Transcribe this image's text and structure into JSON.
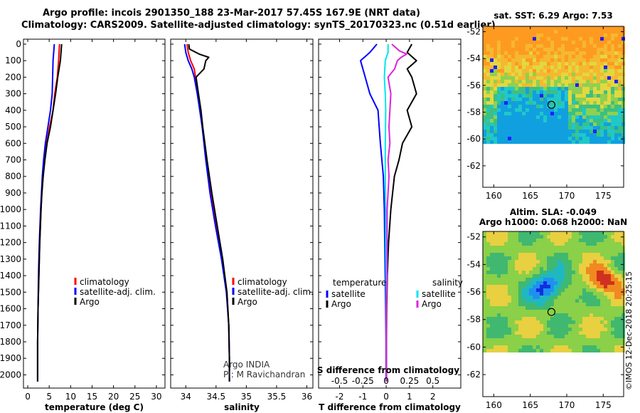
{
  "title_line1": "Argo profile: incois 2901350_188 23-Mar-2017 57.45S 167.9E (NRT data)",
  "title_line2": "Climatology: CARS2009. Satellite-adjusted climatology: synTS_20170323.nc (0.51d earlier)",
  "sst_title": "sat. SST: 6.29 Argo: 7.53",
  "sla_title1": "Altim. SLA: -0.049",
  "sla_title2": "Argo h1000: 0.068 h2000: NaN",
  "credit": "©IMOS 12-Dec-2018 20:25:15",
  "colors": {
    "climatology": "#ff0000",
    "satellite": "#0000ff",
    "argo": "#000000",
    "sat_salinity": "#00e5ee",
    "argo_salinity": "#e020e0"
  },
  "depth_ticks": [
    "0",
    "100",
    "200",
    "300",
    "400",
    "500",
    "600",
    "700",
    "800",
    "900",
    "1000",
    "1100",
    "1200",
    "1300",
    "1400",
    "1500",
    "1600",
    "1700",
    "1800",
    "1900",
    "2000"
  ],
  "chart_data": [
    {
      "type": "line",
      "xlabel": "temperature (deg C)",
      "xlim": [
        -1,
        32
      ],
      "ylim": [
        2080,
        -30
      ],
      "xticks": [
        "0",
        "5",
        "10",
        "15",
        "20",
        "25",
        "30"
      ],
      "legend": [
        "climatology",
        "satellite-adj. clim.",
        "Argo"
      ],
      "series": [
        {
          "name": "climatology",
          "depth": [
            0,
            100,
            200,
            300,
            400,
            500,
            600,
            700,
            800,
            900,
            1000,
            1200,
            1400,
            1600,
            1800,
            2000,
            2040
          ],
          "values": [
            7.4,
            7.2,
            6.9,
            6.3,
            5.9,
            5.1,
            4.4,
            3.9,
            3.6,
            3.3,
            3.1,
            2.8,
            2.6,
            2.4,
            2.3,
            2.3,
            2.3
          ]
        },
        {
          "name": "satellite-adj. clim.",
          "depth": [
            0,
            100,
            200,
            300,
            400,
            500,
            600,
            700,
            800,
            900,
            1000,
            1200,
            1400,
            1600,
            1800,
            2000,
            2040
          ],
          "values": [
            6.2,
            5.9,
            5.8,
            5.7,
            5.3,
            4.7,
            4.1,
            3.7,
            3.4,
            3.2,
            3.0,
            2.7,
            2.5,
            2.4,
            2.3,
            2.3,
            2.3
          ]
        },
        {
          "name": "Argo",
          "depth": [
            0,
            100,
            200,
            300,
            400,
            500,
            600,
            700,
            800,
            900,
            1000,
            1200,
            1400,
            1600,
            1800,
            2000,
            2040
          ],
          "values": [
            7.9,
            7.6,
            7.0,
            6.5,
            5.9,
            5.3,
            4.5,
            4.0,
            3.6,
            3.3,
            3.1,
            2.8,
            2.6,
            2.4,
            2.3,
            2.3,
            2.3
          ]
        }
      ]
    },
    {
      "type": "line",
      "xlabel": "salinity",
      "xlim": [
        33.75,
        36.1
      ],
      "ylim": [
        2080,
        -30
      ],
      "xticks": [
        "34",
        "34.5",
        "35",
        "35.5",
        "36"
      ],
      "legend": [
        "climatology",
        "satellite-adj. clim.",
        "Argo"
      ],
      "annotation": [
        "Argo INDIA",
        "PI: M Ravichandran"
      ],
      "series": [
        {
          "name": "climatology",
          "depth": [
            0,
            50,
            100,
            150,
            200,
            300,
            400,
            500,
            700,
            900,
            1100,
            1300,
            1500,
            1700,
            1900,
            2040
          ],
          "values": [
            34.02,
            34.04,
            34.08,
            34.14,
            34.16,
            34.2,
            34.24,
            34.27,
            34.34,
            34.41,
            34.5,
            34.6,
            34.68,
            34.71,
            34.72,
            34.72
          ]
        },
        {
          "name": "satellite-adj. clim.",
          "depth": [
            0,
            50,
            100,
            150,
            200,
            300,
            400,
            500,
            700,
            900,
            1100,
            1300,
            1500,
            1700,
            1900,
            2040
          ],
          "values": [
            33.98,
            34.0,
            34.04,
            34.1,
            34.14,
            34.19,
            34.23,
            34.27,
            34.33,
            34.4,
            34.49,
            34.59,
            34.67,
            34.71,
            34.72,
            34.72
          ]
        },
        {
          "name": "Argo",
          "depth": [
            0,
            30,
            60,
            80,
            100,
            150,
            200,
            300,
            400,
            500,
            700,
            900,
            1100,
            1300,
            1500,
            1700,
            1900,
            2040
          ],
          "values": [
            34.05,
            34.06,
            34.22,
            34.38,
            34.33,
            34.3,
            34.17,
            34.21,
            34.25,
            34.28,
            34.35,
            34.43,
            34.52,
            34.61,
            34.68,
            34.71,
            34.72,
            34.72
          ]
        }
      ]
    },
    {
      "type": "line",
      "xlabel": "T difference from climatology",
      "xlabel2": "S difference from climatology",
      "xlim": [
        -2.9,
        3.2
      ],
      "ylim": [
        2080,
        -30
      ],
      "xticks": [
        "-2",
        "-1",
        "0",
        "1",
        "2"
      ],
      "xticks2": [
        "-0.5",
        "-0.25",
        "0",
        "0.25",
        "0.5"
      ],
      "legend_left_title": "temperature",
      "legend_right_title": "salinity",
      "series": [
        {
          "name": "satellite",
          "quantity": "temperature",
          "depth": [
            0,
            50,
            100,
            200,
            300,
            400,
            500,
            600,
            800,
            1000,
            1200,
            1400,
            1600,
            1800,
            2040
          ],
          "values": [
            -0.4,
            -0.7,
            -1.1,
            -0.9,
            -0.7,
            -0.35,
            -0.3,
            -0.25,
            -0.12,
            -0.08,
            -0.06,
            -0.04,
            -0.02,
            -0.01,
            -0.01
          ]
        },
        {
          "name": "Argo",
          "quantity": "temperature",
          "depth": [
            0,
            50,
            100,
            150,
            200,
            300,
            400,
            500,
            600,
            700,
            800,
            1000,
            1200,
            1400,
            1600,
            1800,
            2040
          ],
          "values": [
            1.1,
            0.9,
            1.3,
            0.9,
            1.1,
            1.3,
            0.9,
            1.1,
            0.7,
            0.55,
            0.35,
            0.2,
            0.1,
            0.05,
            0.02,
            0.01,
            0.01
          ]
        },
        {
          "name": "satellite",
          "quantity": "salinity",
          "depth": [
            0,
            50,
            100,
            200,
            300,
            400,
            600,
            800,
            1000,
            1200,
            1400,
            1600,
            1800,
            2040
          ],
          "values": [
            0.02,
            0.02,
            -0.01,
            -0.02,
            -0.01,
            -0.005,
            -0.01,
            -0.01,
            -0.005,
            -0.005,
            0,
            0,
            0,
            0
          ]
        },
        {
          "name": "Argo",
          "quantity": "salinity",
          "depth": [
            0,
            40,
            60,
            80,
            100,
            150,
            200,
            300,
            400,
            500,
            600,
            700,
            800,
            1000,
            1200,
            1400,
            1600,
            1800,
            2040
          ],
          "values": [
            0.06,
            0.14,
            0.22,
            0.16,
            0.12,
            0.09,
            0.02,
            0.05,
            0.04,
            0.03,
            0.04,
            0.02,
            0.03,
            0.01,
            0.01,
            0.01,
            0,
            0,
            0
          ]
        }
      ]
    },
    {
      "type": "heatmap",
      "title": "sat. SST: 6.29 Argo: 7.53",
      "xticks": [
        "160",
        "165",
        "170",
        "175"
      ],
      "yticks": [
        "-52",
        "-54",
        "-56",
        "-58",
        "-60",
        "-62"
      ],
      "marker": {
        "lon": 167.9,
        "lat": -57.45
      }
    },
    {
      "type": "heatmap",
      "title": "Altim. SLA: -0.049",
      "xticks": [
        "160",
        "165",
        "170",
        "175"
      ],
      "yticks": [
        "-52",
        "-54",
        "-56",
        "-58",
        "-60",
        "-62"
      ],
      "marker": {
        "lon": 167.9,
        "lat": -57.45
      }
    }
  ]
}
